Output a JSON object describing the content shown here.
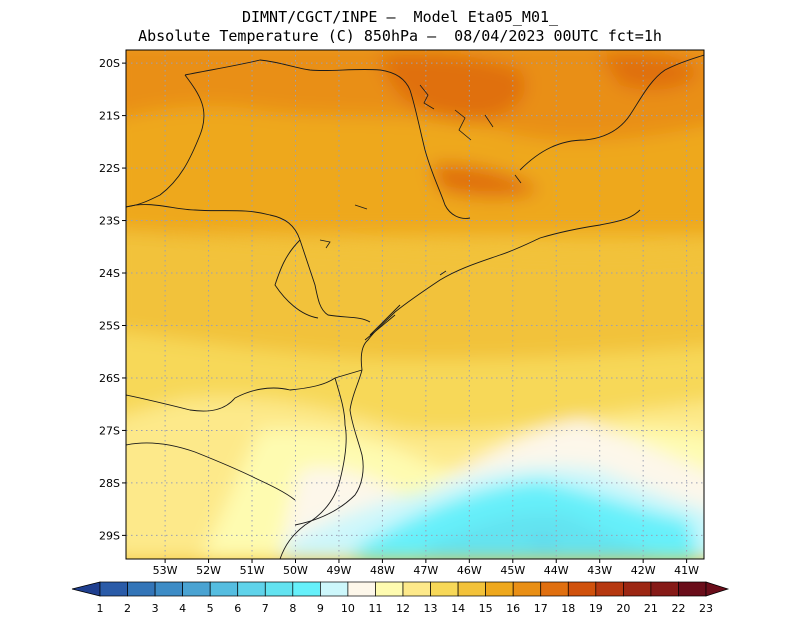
{
  "title": {
    "line1": "DIMNT/CGCT/INPE –  Model Eta05_M01_",
    "line2": "Absolute Temperature (C) 850hPa –  08/04/2023 00UTC fct=1h"
  },
  "map": {
    "lat_labels": [
      "20S",
      "21S",
      "22S",
      "23S",
      "24S",
      "25S",
      "26S",
      "27S",
      "28S",
      "29S"
    ],
    "lon_labels": [
      "53W",
      "52W",
      "51W",
      "50W",
      "49W",
      "48W",
      "47W",
      "46W",
      "45W",
      "44W",
      "43W",
      "42W",
      "41W"
    ],
    "lat_range": [
      -29.45,
      -19.75
    ],
    "lon_range": [
      -53.9,
      -40.6
    ],
    "grid": "dotted"
  },
  "colorbar": {
    "labels": [
      "1",
      "2",
      "3",
      "4",
      "5",
      "6",
      "7",
      "8",
      "9",
      "10",
      "11",
      "12",
      "13",
      "14",
      "15",
      "16",
      "17",
      "18",
      "19",
      "20",
      "21",
      "22",
      "23"
    ],
    "colors": [
      "#1f3f8f",
      "#2a5ba8",
      "#3375b8",
      "#3d8cc6",
      "#4aa3d2",
      "#55bde0",
      "#5fd3ea",
      "#63e3f0",
      "#66f0fa",
      "#cdf7fb",
      "#fdf7ea",
      "#fefbb0",
      "#fde98a",
      "#f7d858",
      "#f2c23a",
      "#eea81d",
      "#e98f15",
      "#e06f0f",
      "#d0510c",
      "#b63810",
      "#9c2713",
      "#861a17",
      "#6a0d1a"
    ]
  }
}
